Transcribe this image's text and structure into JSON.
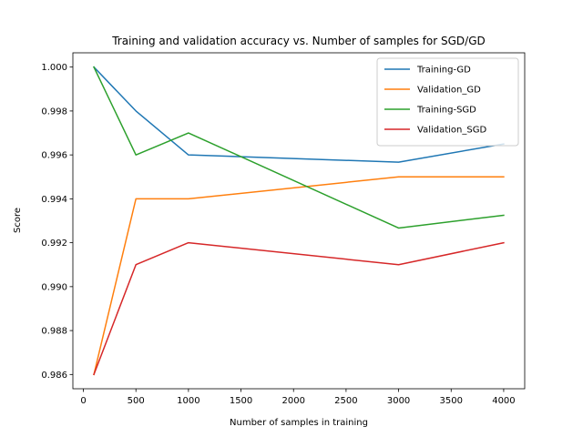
{
  "chart_data": {
    "type": "line",
    "title": "Training and validation accuracy vs. Number of samples for SGD/GD",
    "xlabel": "Number of samples in training",
    "ylabel": "Score",
    "xlim": [
      -100,
      4200
    ],
    "ylim": [
      0.98535,
      1.00065
    ],
    "xticks": [
      0,
      500,
      1000,
      1500,
      2000,
      2500,
      3000,
      3500,
      4000
    ],
    "yticks": [
      0.986,
      0.988,
      0.99,
      0.992,
      0.994,
      0.996,
      0.998,
      1.0
    ],
    "ytick_labels": [
      "0.986",
      "0.988",
      "0.990",
      "0.992",
      "0.994",
      "0.996",
      "0.998",
      "1.000"
    ],
    "grid": false,
    "legend_position": "top-right",
    "x": [
      100,
      500,
      1000,
      3000,
      4000
    ],
    "series": [
      {
        "name": "Training-GD",
        "color": "#1f77b4",
        "values": [
          1.0,
          0.998,
          0.996,
          0.99567,
          0.9965
        ]
      },
      {
        "name": "Validation_GD",
        "color": "#ff7f0e",
        "values": [
          0.986,
          0.994,
          0.994,
          0.995,
          0.995
        ]
      },
      {
        "name": "Training-SGD",
        "color": "#2ca02c",
        "values": [
          1.0,
          0.996,
          0.997,
          0.99267,
          0.99325
        ]
      },
      {
        "name": "Validation_SGD",
        "color": "#d62728",
        "values": [
          0.986,
          0.991,
          0.992,
          0.991,
          0.992
        ]
      }
    ]
  }
}
